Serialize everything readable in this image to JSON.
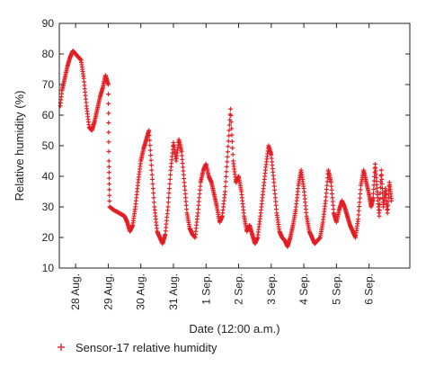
{
  "chart_data": {
    "type": "scatter",
    "xlabel": "Date (12:00 a.m.)",
    "ylabel": "Relative humidity (%)",
    "ylim": [
      10,
      90
    ],
    "xlim": [
      "2014-08-27T12:00",
      "2014-09-07T06:00"
    ],
    "y_ticks": [
      10,
      20,
      30,
      40,
      50,
      60,
      70,
      80,
      90
    ],
    "x_ticks": [
      {
        "date": "2014-08-28T00:00",
        "label": "28 Aug."
      },
      {
        "date": "2014-08-29T00:00",
        "label": "29 Aug."
      },
      {
        "date": "2014-08-30T00:00",
        "label": "30 Aug."
      },
      {
        "date": "2014-08-31T00:00",
        "label": "31 Aug."
      },
      {
        "date": "2014-09-01T00:00",
        "label": "1 Sep."
      },
      {
        "date": "2014-09-02T00:00",
        "label": "2 Sep."
      },
      {
        "date": "2014-09-03T00:00",
        "label": "3 Sep."
      },
      {
        "date": "2014-09-04T00:00",
        "label": "4 Sep."
      },
      {
        "date": "2014-09-05T00:00",
        "label": "5 Sep."
      },
      {
        "date": "2014-09-06T00:00",
        "label": "6 Sep."
      }
    ],
    "grid": false,
    "legend_position": "bottom-left",
    "series": [
      {
        "name": "Sensor-17 relative humidity",
        "color": "#e31e24",
        "marker": "plus",
        "points": [
          [
            "2014-08-27T12:00",
            60
          ],
          [
            "2014-08-27T14:00",
            68
          ],
          [
            "2014-08-27T16:00",
            72
          ],
          [
            "2014-08-27T18:00",
            76
          ],
          [
            "2014-08-27T20:00",
            79
          ],
          [
            "2014-08-27T22:00",
            81
          ],
          [
            "2014-08-28T00:00",
            80
          ],
          [
            "2014-08-28T02:00",
            79
          ],
          [
            "2014-08-28T04:00",
            78
          ],
          [
            "2014-08-28T06:00",
            72
          ],
          [
            "2014-08-28T08:00",
            63
          ],
          [
            "2014-08-28T10:00",
            56
          ],
          [
            "2014-08-28T12:00",
            55
          ],
          [
            "2014-08-28T14:00",
            58
          ],
          [
            "2014-08-28T16:00",
            62
          ],
          [
            "2014-08-28T18:00",
            66
          ],
          [
            "2014-08-28T20:00",
            69
          ],
          [
            "2014-08-28T22:00",
            73
          ],
          [
            "2014-08-29T00:00",
            70
          ],
          [
            "2014-08-29T00:30",
            45
          ],
          [
            "2014-08-29T01:00",
            30
          ],
          [
            "2014-08-29T04:00",
            29
          ],
          [
            "2014-08-29T08:00",
            28
          ],
          [
            "2014-08-29T12:00",
            27
          ],
          [
            "2014-08-29T14:00",
            25
          ],
          [
            "2014-08-29T16:00",
            22
          ],
          [
            "2014-08-29T18:00",
            24
          ],
          [
            "2014-08-29T20:00",
            30
          ],
          [
            "2014-08-29T22:00",
            38
          ],
          [
            "2014-08-30T00:00",
            45
          ],
          [
            "2014-08-30T02:00",
            49
          ],
          [
            "2014-08-30T04:00",
            52
          ],
          [
            "2014-08-30T06:00",
            55
          ],
          [
            "2014-08-30T08:00",
            42
          ],
          [
            "2014-08-30T10:00",
            30
          ],
          [
            "2014-08-30T12:00",
            22
          ],
          [
            "2014-08-30T14:00",
            20
          ],
          [
            "2014-08-30T16:00",
            18
          ],
          [
            "2014-08-30T18:00",
            21
          ],
          [
            "2014-08-30T20:00",
            30
          ],
          [
            "2014-08-30T22:00",
            42
          ],
          [
            "2014-08-31T00:00",
            51
          ],
          [
            "2014-08-31T02:00",
            45
          ],
          [
            "2014-08-31T04:00",
            52
          ],
          [
            "2014-08-31T06:00",
            48
          ],
          [
            "2014-08-31T08:00",
            38
          ],
          [
            "2014-08-31T10:00",
            28
          ],
          [
            "2014-08-31T12:00",
            23
          ],
          [
            "2014-08-31T14:00",
            21
          ],
          [
            "2014-08-31T16:00",
            20
          ],
          [
            "2014-08-31T18:00",
            28
          ],
          [
            "2014-08-31T20:00",
            38
          ],
          [
            "2014-08-31T22:00",
            42
          ],
          [
            "2014-09-01T00:00",
            44
          ],
          [
            "2014-09-01T02:00",
            40
          ],
          [
            "2014-09-01T04:00",
            38
          ],
          [
            "2014-09-01T06:00",
            34
          ],
          [
            "2014-09-01T08:00",
            30
          ],
          [
            "2014-09-01T10:00",
            25
          ],
          [
            "2014-09-01T12:00",
            27
          ],
          [
            "2014-09-01T14:00",
            35
          ],
          [
            "2014-09-01T16:00",
            48
          ],
          [
            "2014-09-01T18:00",
            62
          ],
          [
            "2014-09-01T20:00",
            45
          ],
          [
            "2014-09-01T22:00",
            38
          ],
          [
            "2014-09-02T00:00",
            40
          ],
          [
            "2014-09-02T02:00",
            35
          ],
          [
            "2014-09-02T04:00",
            27
          ],
          [
            "2014-09-02T06:00",
            22
          ],
          [
            "2014-09-02T08:00",
            24
          ],
          [
            "2014-09-02T10:00",
            21
          ],
          [
            "2014-09-02T12:00",
            18
          ],
          [
            "2014-09-02T14:00",
            20
          ],
          [
            "2014-09-02T16:00",
            27
          ],
          [
            "2014-09-02T18:00",
            35
          ],
          [
            "2014-09-02T20:00",
            43
          ],
          [
            "2014-09-02T22:00",
            50
          ],
          [
            "2014-09-03T00:00",
            47
          ],
          [
            "2014-09-03T02:00",
            38
          ],
          [
            "2014-09-03T04:00",
            28
          ],
          [
            "2014-09-03T06:00",
            22
          ],
          [
            "2014-09-03T08:00",
            20
          ],
          [
            "2014-09-03T10:00",
            19
          ],
          [
            "2014-09-03T12:00",
            17
          ],
          [
            "2014-09-03T14:00",
            20
          ],
          [
            "2014-09-03T16:00",
            24
          ],
          [
            "2014-09-03T18:00",
            29
          ],
          [
            "2014-09-03T20:00",
            37
          ],
          [
            "2014-09-03T22:00",
            42
          ],
          [
            "2014-09-04T00:00",
            36
          ],
          [
            "2014-09-04T02:00",
            27
          ],
          [
            "2014-09-04T04:00",
            22
          ],
          [
            "2014-09-04T06:00",
            20
          ],
          [
            "2014-09-04T08:00",
            18
          ],
          [
            "2014-09-04T10:00",
            19
          ],
          [
            "2014-09-04T12:00",
            20
          ],
          [
            "2014-09-04T14:00",
            25
          ],
          [
            "2014-09-04T16:00",
            32
          ],
          [
            "2014-09-04T18:00",
            42
          ],
          [
            "2014-09-04T20:00",
            38
          ],
          [
            "2014-09-04T22:00",
            28
          ],
          [
            "2014-09-05T00:00",
            25
          ],
          [
            "2014-09-05T02:00",
            29
          ],
          [
            "2014-09-05T04:00",
            32
          ],
          [
            "2014-09-05T06:00",
            30
          ],
          [
            "2014-09-05T08:00",
            27
          ],
          [
            "2014-09-05T10:00",
            24
          ],
          [
            "2014-09-05T12:00",
            22
          ],
          [
            "2014-09-05T14:00",
            20
          ],
          [
            "2014-09-05T16:00",
            26
          ],
          [
            "2014-09-05T18:00",
            37
          ],
          [
            "2014-09-05T20:00",
            42
          ],
          [
            "2014-09-05T22:00",
            38
          ],
          [
            "2014-09-06T00:00",
            34
          ],
          [
            "2014-09-06T01:30",
            30
          ],
          [
            "2014-09-06T03:00",
            33
          ],
          [
            "2014-09-06T04:30",
            44
          ],
          [
            "2014-09-06T06:00",
            35
          ],
          [
            "2014-09-06T07:30",
            27
          ],
          [
            "2014-09-06T09:00",
            42
          ],
          [
            "2014-09-06T10:30",
            30
          ],
          [
            "2014-09-06T12:00",
            36
          ],
          [
            "2014-09-06T13:30",
            28
          ],
          [
            "2014-09-06T15:00",
            38
          ],
          [
            "2014-09-06T16:30",
            32
          ]
        ]
      }
    ]
  }
}
